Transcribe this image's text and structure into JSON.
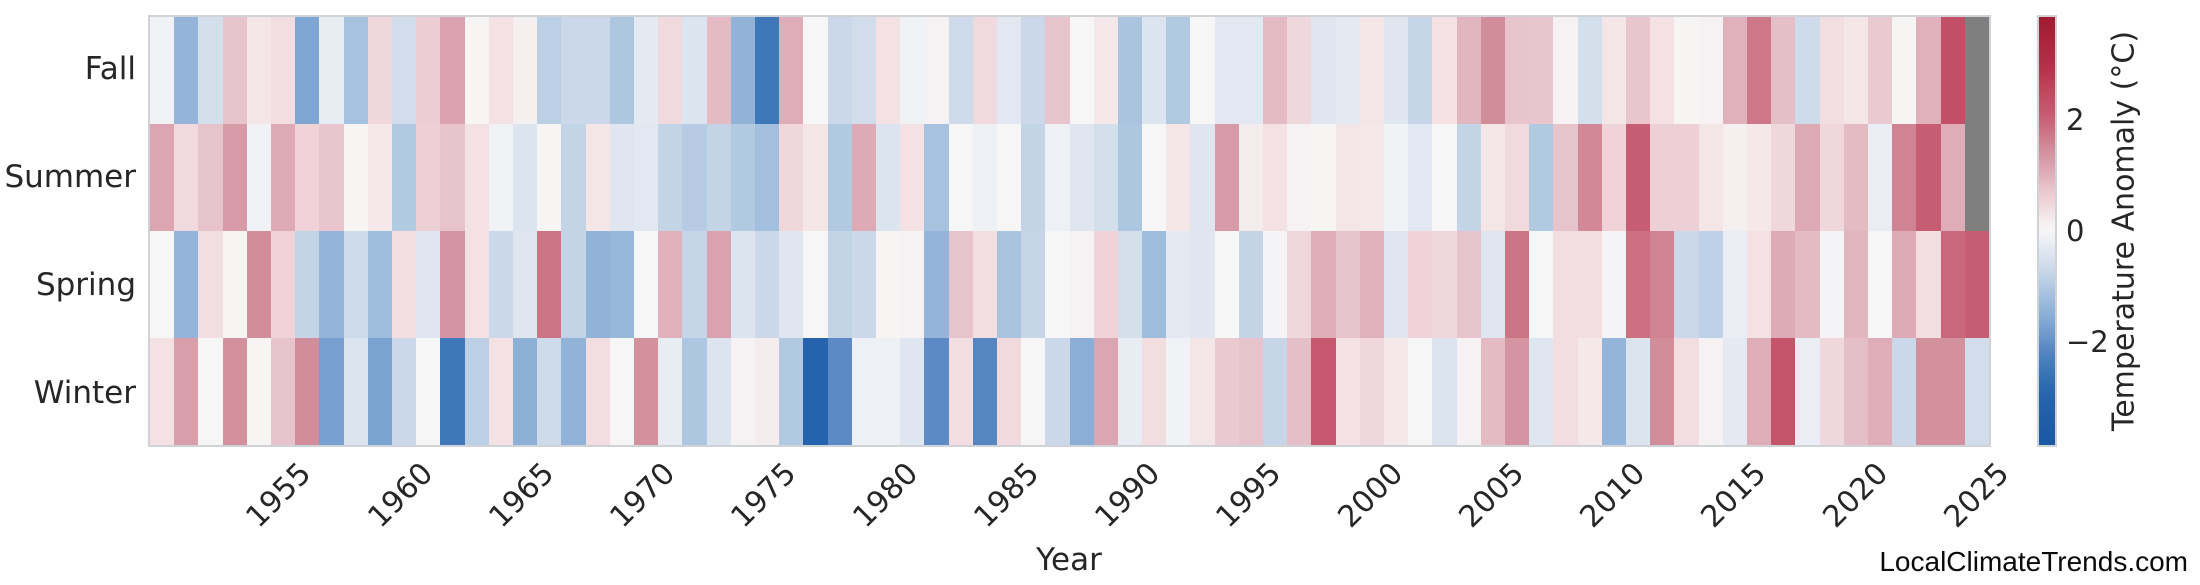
{
  "figure": {
    "xlabel": "Year",
    "watermark": "LocalClimateTrends.com"
  },
  "chart_data": {
    "type": "heatmap",
    "title": "",
    "xlabel": "Year",
    "ylabel": "",
    "x_start_year": 1950,
    "x_end_year": 2025,
    "x_ticks": [
      1955,
      1960,
      1965,
      1970,
      1975,
      1980,
      1985,
      1990,
      1995,
      2000,
      2005,
      2010,
      2015,
      2020,
      2025
    ],
    "rows": [
      "Fall",
      "Summer",
      "Spring",
      "Winter"
    ],
    "values": {
      "Fall": [
        -0.1,
        -1.4,
        -0.55,
        0.8,
        0.3,
        0.4,
        -1.7,
        -0.25,
        -1.15,
        0.5,
        -0.6,
        0.65,
        1.2,
        0.05,
        0.35,
        0.15,
        -0.9,
        -0.7,
        -0.7,
        -1.05,
        -0.3,
        0.45,
        -0.45,
        0.9,
        -1.45,
        -2.5,
        1.05,
        0.0,
        -0.7,
        -0.6,
        0.35,
        -0.1,
        0.1,
        -0.65,
        0.45,
        -0.35,
        -0.7,
        0.8,
        0.0,
        0.25,
        -1.1,
        -0.45,
        -1.0,
        0.0,
        -0.35,
        -0.35,
        0.9,
        0.5,
        -0.4,
        -0.3,
        0.3,
        -0.4,
        -0.75,
        0.35,
        0.95,
        1.5,
        0.8,
        0.75,
        0.1,
        -0.55,
        0.3,
        0.75,
        0.35,
        0.05,
        0.1,
        1.0,
        1.75,
        0.85,
        -0.65,
        0.4,
        0.3,
        0.7,
        0.05,
        1.0,
        2.4,
        null
      ],
      "Summer": [
        1.15,
        0.45,
        0.8,
        1.3,
        -0.1,
        1.1,
        0.55,
        0.75,
        0.05,
        0.25,
        -1.0,
        0.6,
        0.8,
        0.35,
        -0.1,
        -0.45,
        0.05,
        -0.8,
        0.3,
        -0.4,
        -0.35,
        -0.8,
        -0.95,
        -0.8,
        -1.0,
        -1.2,
        0.5,
        0.3,
        -1.0,
        1.1,
        -0.45,
        0.35,
        -1.15,
        0.0,
        -0.15,
        0.0,
        -0.8,
        -0.15,
        -0.4,
        -0.55,
        -1.05,
        0.0,
        0.3,
        -0.4,
        1.3,
        0.2,
        0.35,
        0.1,
        0.05,
        0.3,
        0.25,
        -0.1,
        -0.35,
        0.0,
        -0.8,
        0.3,
        0.45,
        -1.0,
        0.8,
        1.55,
        0.55,
        2.1,
        0.6,
        0.6,
        0.3,
        0.15,
        0.25,
        0.5,
        1.1,
        0.5,
        0.9,
        -0.2,
        1.6,
        2.1,
        1.05,
        null
      ],
      "Spring": [
        0.0,
        -1.4,
        0.4,
        0.05,
        1.5,
        0.55,
        -0.8,
        -1.4,
        -0.65,
        -1.25,
        0.4,
        -0.4,
        1.4,
        0.35,
        -0.7,
        -0.4,
        1.8,
        -0.8,
        -1.45,
        -1.35,
        0.0,
        1.0,
        -0.75,
        1.2,
        -0.45,
        -0.7,
        -0.4,
        0.0,
        -0.8,
        -0.7,
        0.05,
        0.1,
        -1.4,
        0.8,
        0.4,
        -1.1,
        -0.75,
        0.0,
        0.1,
        0.55,
        -0.55,
        -1.25,
        -0.3,
        -0.4,
        0.0,
        -0.8,
        -0.05,
        0.5,
        1.05,
        0.8,
        1.0,
        -0.4,
        0.55,
        0.5,
        0.8,
        -0.4,
        1.8,
        0.0,
        0.4,
        0.4,
        -0.05,
        1.85,
        1.6,
        -0.7,
        -0.85,
        -0.2,
        0.35,
        1.1,
        0.9,
        -0.05,
        0.95,
        0.0,
        1.1,
        0.4,
        1.95,
        2.1
      ],
      "Winter": [
        0.35,
        1.25,
        0.0,
        1.45,
        0.05,
        0.8,
        1.5,
        -1.8,
        -0.45,
        -1.75,
        -0.7,
        0.0,
        -2.5,
        -0.9,
        0.35,
        -1.5,
        -0.65,
        -1.45,
        0.4,
        0.0,
        1.45,
        -0.25,
        -1.05,
        -0.45,
        0.1,
        0.2,
        -1.0,
        -3.0,
        -2.1,
        -0.15,
        -0.15,
        -0.4,
        -2.1,
        0.4,
        -2.2,
        0.45,
        0.0,
        -0.7,
        -1.55,
        1.15,
        -0.25,
        0.4,
        -0.1,
        0.3,
        0.7,
        0.8,
        -0.75,
        0.85,
        2.2,
        0.35,
        0.5,
        0.25,
        0.0,
        -0.45,
        0.1,
        0.9,
        1.4,
        -0.4,
        0.4,
        0.25,
        -1.4,
        -0.45,
        1.5,
        0.4,
        0.1,
        -0.3,
        1.05,
        2.3,
        -0.2,
        0.5,
        0.85,
        1.05,
        -0.7,
        1.45,
        1.45,
        -0.6
      ]
    },
    "missing_cells": [
      [
        "Fall",
        2025
      ],
      [
        "Summer",
        2025
      ]
    ],
    "colorbar": {
      "label": "Temperature Anomaly (°C)",
      "ticks": [
        {
          "label": "2",
          "value": 2
        },
        {
          "label": "0",
          "value": 0
        },
        {
          "label": "−2",
          "value": -2
        }
      ],
      "vmin": -3.9,
      "vmax": 3.9
    },
    "legend_position": "right",
    "grid": false,
    "colors": {
      "missing": "#7f7f7f",
      "plot_border": "#cfd2d6",
      "text": "#262626",
      "colormap_stops": [
        [
          -3.9,
          "#1a58a4"
        ],
        [
          -3.0,
          "#2563ac"
        ],
        [
          -2.5,
          "#3e78b8"
        ],
        [
          -2.1,
          "#5d8ac4"
        ],
        [
          -1.7,
          "#7fa6d2"
        ],
        [
          -1.4,
          "#94b5d9"
        ],
        [
          -1.1,
          "#aac4e0"
        ],
        [
          -0.8,
          "#c3d4e7"
        ],
        [
          -0.55,
          "#d4dfec"
        ],
        [
          -0.35,
          "#e2e8f1"
        ],
        [
          -0.15,
          "#edf0f5"
        ],
        [
          0.0,
          "#f7f6f6"
        ],
        [
          0.15,
          "#f6eff0"
        ],
        [
          0.35,
          "#f3e1e4"
        ],
        [
          0.55,
          "#efd3d8"
        ],
        [
          0.8,
          "#e7c3cb"
        ],
        [
          1.0,
          "#e0b1bb"
        ],
        [
          1.2,
          "#d9a2ae"
        ],
        [
          1.5,
          "#d28d9b"
        ],
        [
          1.8,
          "#cc7384"
        ],
        [
          2.1,
          "#c65d72"
        ],
        [
          2.5,
          "#c04a60"
        ],
        [
          3.0,
          "#b43048"
        ],
        [
          3.9,
          "#a01b31"
        ]
      ]
    }
  }
}
